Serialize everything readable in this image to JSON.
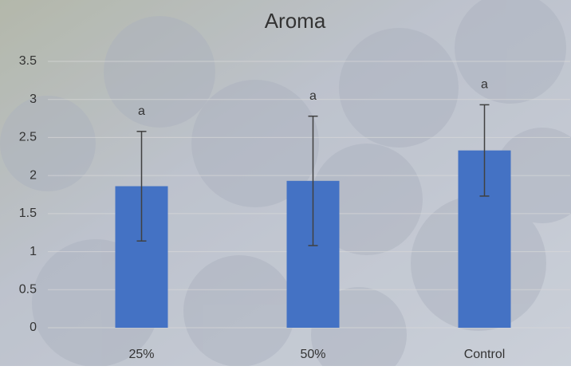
{
  "chart_data": {
    "type": "bar",
    "title": "Aroma",
    "categories": [
      "25%",
      "50%",
      "Control"
    ],
    "values": [
      1.86,
      1.93,
      2.33
    ],
    "errors": [
      0.72,
      0.85,
      0.6
    ],
    "annotations": [
      "a",
      "a",
      "a"
    ],
    "color": "#4472c4",
    "ylim": [
      0,
      3.5
    ],
    "yticks": [
      0,
      0.5,
      1,
      1.5,
      2,
      2.5,
      3,
      3.5
    ],
    "grid": true
  }
}
